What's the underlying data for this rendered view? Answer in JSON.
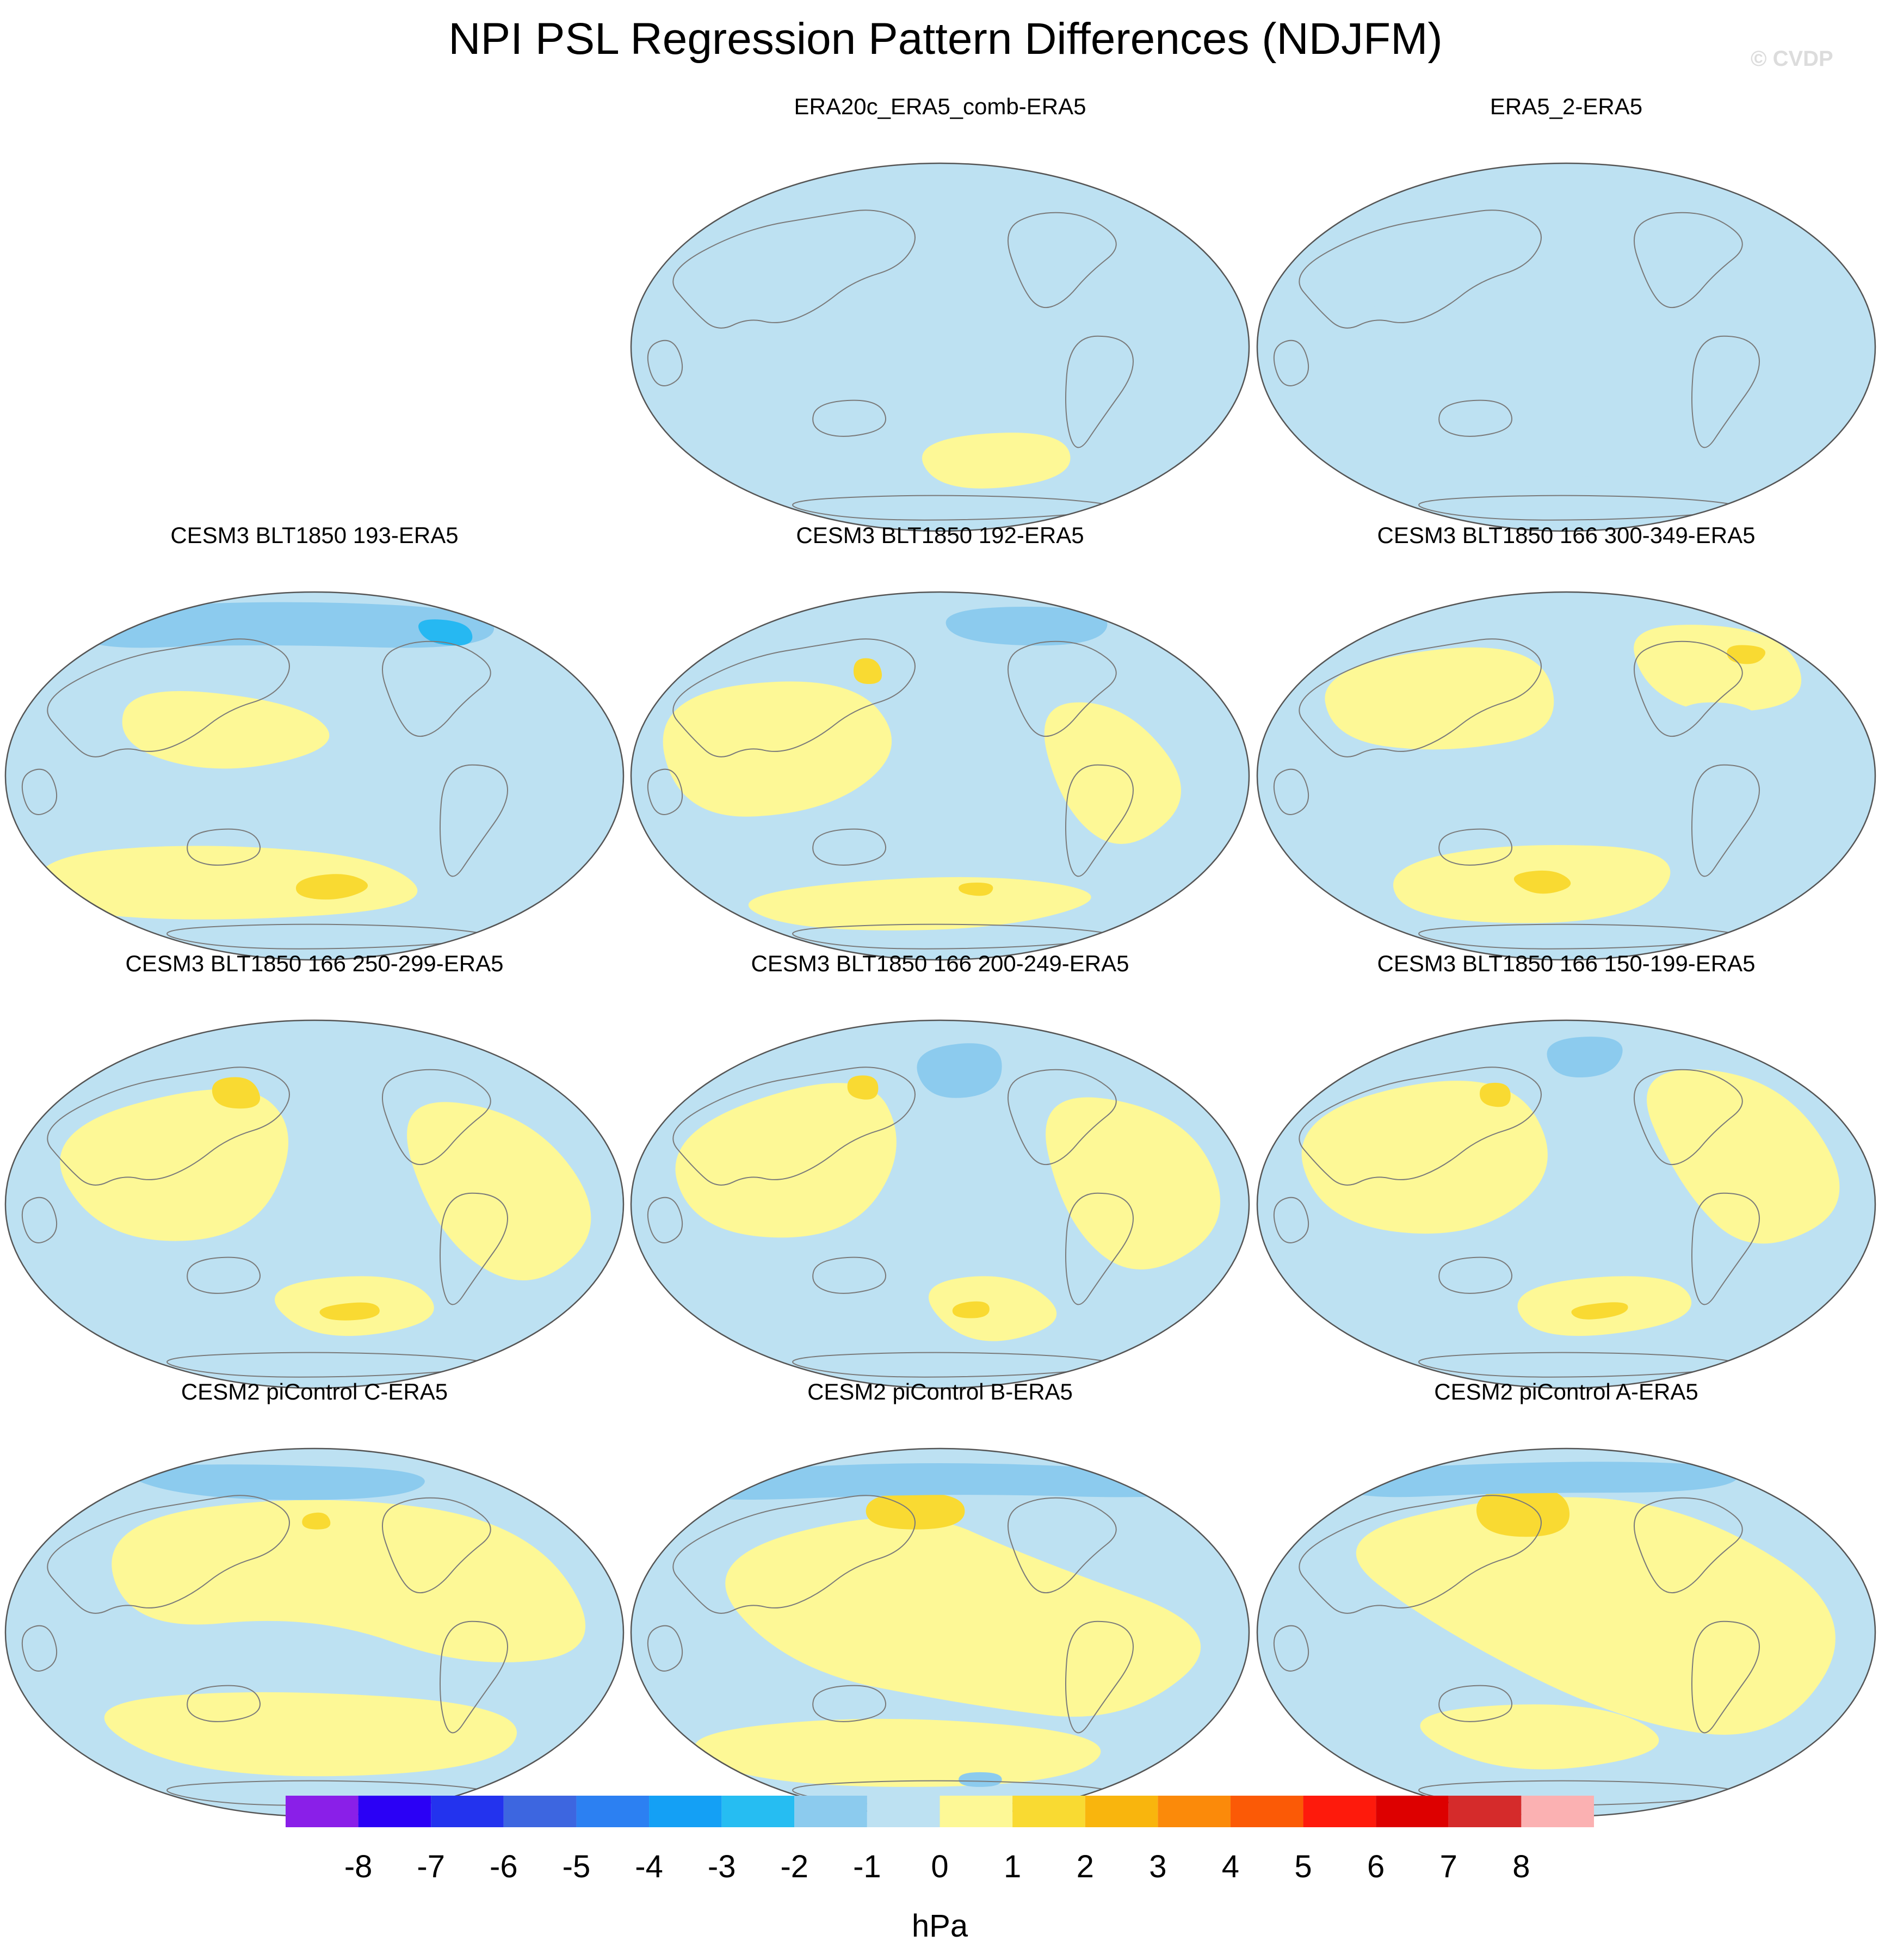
{
  "title": "NPI PSL Regression Pattern Differences (NDJFM)",
  "credit": "© CVDP",
  "colors": {
    "neg1": "#bde1f2",
    "neg2": "#8ccbee",
    "neg3": "#26b8f2",
    "pos1": "#fdf896",
    "pos2": "#f9da32",
    "coast": "#7a7a7a",
    "border": "#555555"
  },
  "panels": [
    {
      "title": "ERA20c_ERA5_comb-ERA5"
    },
    {
      "title": "ERA5_2-ERA5"
    },
    {
      "title": "CESM3 BLT1850 193-ERA5"
    },
    {
      "title": "CESM3 BLT1850 192-ERA5"
    },
    {
      "title": "CESM3 BLT1850 166 300-349-ERA5"
    },
    {
      "title": "CESM3 BLT1850 166 250-299-ERA5"
    },
    {
      "title": "CESM3 BLT1850 166 200-249-ERA5"
    },
    {
      "title": "CESM3 BLT1850 166 150-199-ERA5"
    },
    {
      "title": "CESM2 piControl C-ERA5"
    },
    {
      "title": "CESM2 piControl B-ERA5"
    },
    {
      "title": "CESM2 piControl A-ERA5"
    }
  ],
  "colorbar": {
    "unit": "hPa",
    "labels": [
      "-8",
      "-7",
      "-6",
      "-5",
      "-4",
      "-3",
      "-2",
      "-1",
      "0",
      "1",
      "2",
      "3",
      "4",
      "5",
      "6",
      "7",
      "8"
    ],
    "colors": [
      "#8a1fe8",
      "#2b00f5",
      "#2333ee",
      "#3d66e0",
      "#2c80f2",
      "#14a0f5",
      "#26bdf2",
      "#8ccbee",
      "#bde1f2",
      "#fdf896",
      "#f9da32",
      "#f9b50d",
      "#fb8a0a",
      "#fb5a06",
      "#fe1a0c",
      "#dd0000",
      "#d52b2b",
      "#fbb1b2"
    ]
  }
}
